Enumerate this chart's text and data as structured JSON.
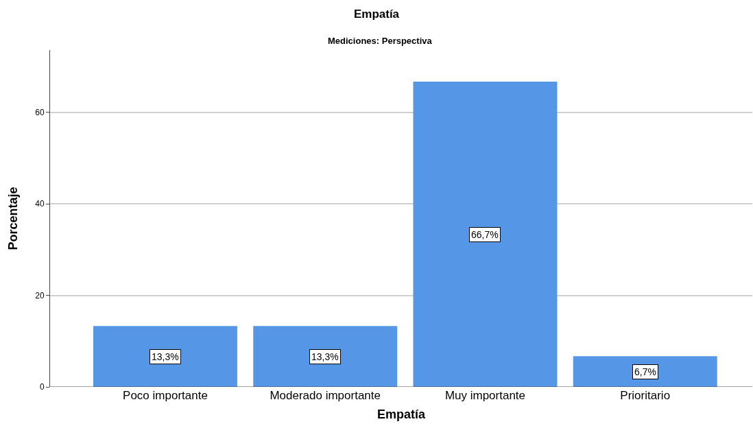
{
  "chart_data": {
    "type": "bar",
    "title": "Empatía",
    "subtitle": "Mediciones: Perspectiva",
    "xlabel": "Empatía",
    "ylabel": "Porcentaje",
    "categories": [
      "Poco importante",
      "Moderado importante",
      "Muy importante",
      "Prioritario"
    ],
    "values": [
      13.3,
      13.3,
      66.7,
      6.7
    ],
    "value_labels": [
      "13,3%",
      "13,3%",
      "66,7%",
      "6,7%"
    ],
    "color": "#5596e6",
    "ylim": [
      0,
      73.6
    ],
    "yticks": [
      0,
      20,
      40,
      60
    ],
    "grid": "y"
  }
}
